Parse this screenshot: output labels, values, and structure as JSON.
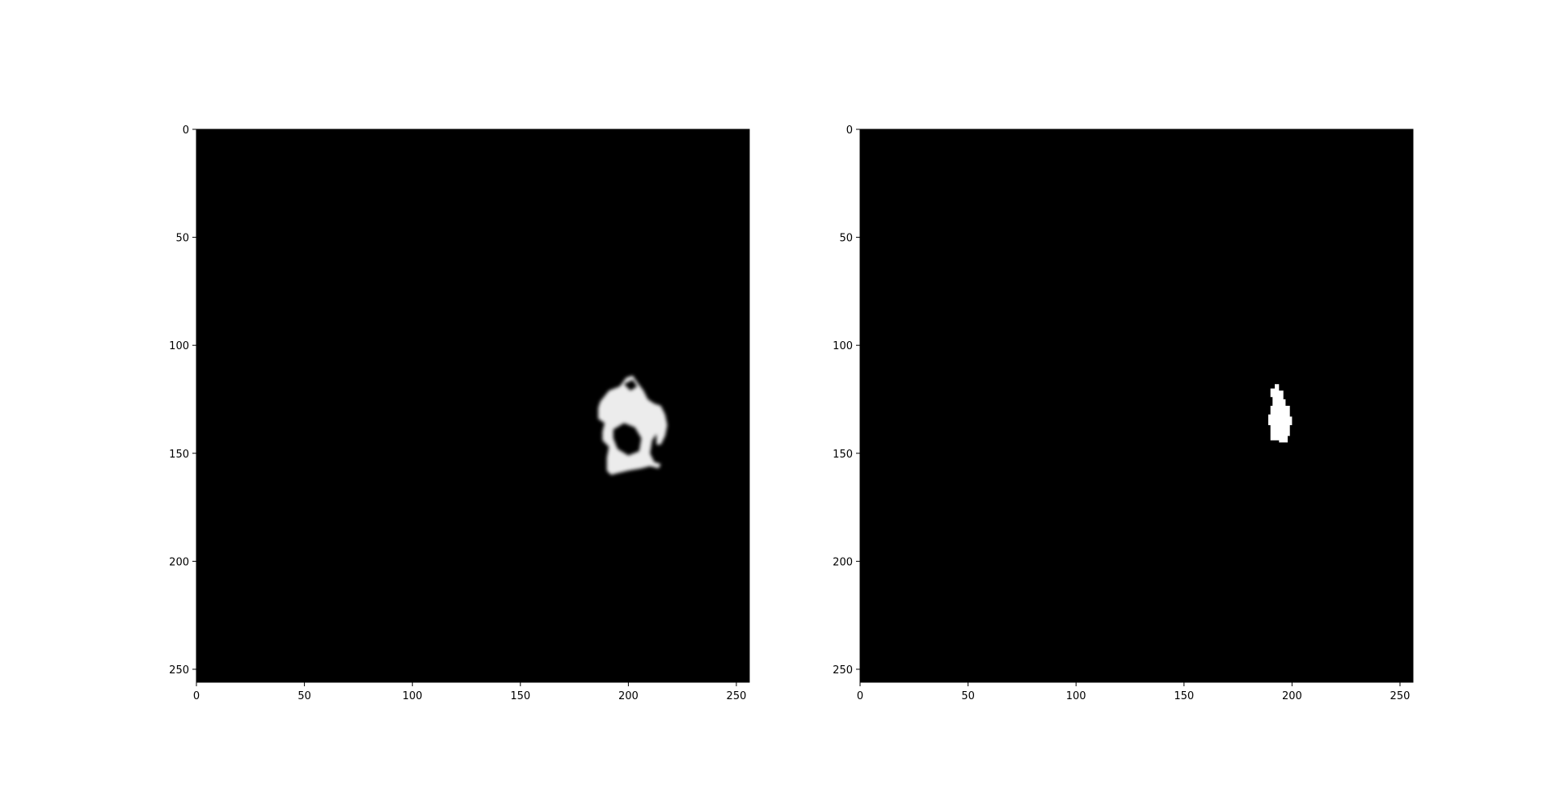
{
  "chart_data": [
    {
      "type": "heatmap",
      "description_role": "predicted-mask",
      "colormap": "gray",
      "background_value": 0,
      "image_size": [
        256,
        256
      ],
      "xlim": [
        0,
        256
      ],
      "ylim": [
        256,
        0
      ],
      "x_ticks": [
        0,
        50,
        100,
        150,
        200,
        250
      ],
      "y_ticks": [
        0,
        50,
        100,
        150,
        200,
        250
      ],
      "x_tick_labels": [
        "0",
        "50",
        "100",
        "150",
        "200",
        "250"
      ],
      "y_tick_labels": [
        "0",
        "50",
        "100",
        "150",
        "200",
        "250"
      ],
      "blob": {
        "value": "soft-white",
        "outline": [
          [
            187,
            126
          ],
          [
            191,
            121
          ],
          [
            196,
            119
          ],
          [
            199,
            115
          ],
          [
            202,
            114
          ],
          [
            204,
            117
          ],
          [
            207,
            121
          ],
          [
            209,
            125
          ],
          [
            212,
            127
          ],
          [
            215,
            128
          ],
          [
            217,
            132
          ],
          [
            218,
            137
          ],
          [
            217,
            142
          ],
          [
            215,
            146
          ],
          [
            213,
            146
          ],
          [
            213,
            141
          ],
          [
            211,
            144
          ],
          [
            210,
            150
          ],
          [
            212,
            154
          ],
          [
            215,
            155
          ],
          [
            214,
            157
          ],
          [
            210,
            156
          ],
          [
            206,
            157
          ],
          [
            200,
            158
          ],
          [
            196,
            159
          ],
          [
            192,
            160
          ],
          [
            190,
            158
          ],
          [
            190,
            152
          ],
          [
            191,
            147
          ],
          [
            188,
            144
          ],
          [
            188,
            140
          ],
          [
            189,
            136
          ],
          [
            186,
            134
          ],
          [
            186,
            129
          ]
        ],
        "holes": [
          [
            [
              193,
              139
            ],
            [
              198,
              136
            ],
            [
              203,
              138
            ],
            [
              206,
              143
            ],
            [
              205,
              149
            ],
            [
              200,
              151
            ],
            [
              195,
              148
            ],
            [
              193,
              143
            ]
          ],
          [
            [
              198,
              118
            ],
            [
              202,
              116
            ],
            [
              204,
              119
            ],
            [
              201,
              121
            ]
          ]
        ]
      },
      "title": "",
      "xlabel": "",
      "ylabel": ""
    },
    {
      "type": "heatmap",
      "description_role": "ground-truth-mask",
      "colormap": "gray",
      "background_value": 0,
      "image_size": [
        256,
        256
      ],
      "xlim": [
        0,
        256
      ],
      "ylim": [
        256,
        0
      ],
      "x_ticks": [
        0,
        50,
        100,
        150,
        200,
        250
      ],
      "y_ticks": [
        0,
        50,
        100,
        150,
        200,
        250
      ],
      "x_tick_labels": [
        "0",
        "50",
        "100",
        "150",
        "200",
        "250"
      ],
      "y_tick_labels": [
        "0",
        "50",
        "100",
        "150",
        "200",
        "250"
      ],
      "blob": {
        "value": "binary-white",
        "outline": [
          [
            190,
            120
          ],
          [
            192,
            120
          ],
          [
            192,
            118
          ],
          [
            194,
            118
          ],
          [
            194,
            121
          ],
          [
            196,
            121
          ],
          [
            196,
            125
          ],
          [
            197,
            125
          ],
          [
            197,
            128
          ],
          [
            199,
            128
          ],
          [
            199,
            133
          ],
          [
            200,
            133
          ],
          [
            200,
            137
          ],
          [
            199,
            137
          ],
          [
            199,
            142
          ],
          [
            198,
            142
          ],
          [
            198,
            145
          ],
          [
            194,
            145
          ],
          [
            194,
            144
          ],
          [
            190,
            144
          ],
          [
            190,
            137
          ],
          [
            189,
            137
          ],
          [
            189,
            132
          ],
          [
            190,
            132
          ],
          [
            190,
            128
          ],
          [
            191,
            128
          ],
          [
            191,
            124
          ],
          [
            190,
            124
          ]
        ],
        "holes": []
      },
      "title": "",
      "xlabel": "",
      "ylabel": ""
    }
  ]
}
